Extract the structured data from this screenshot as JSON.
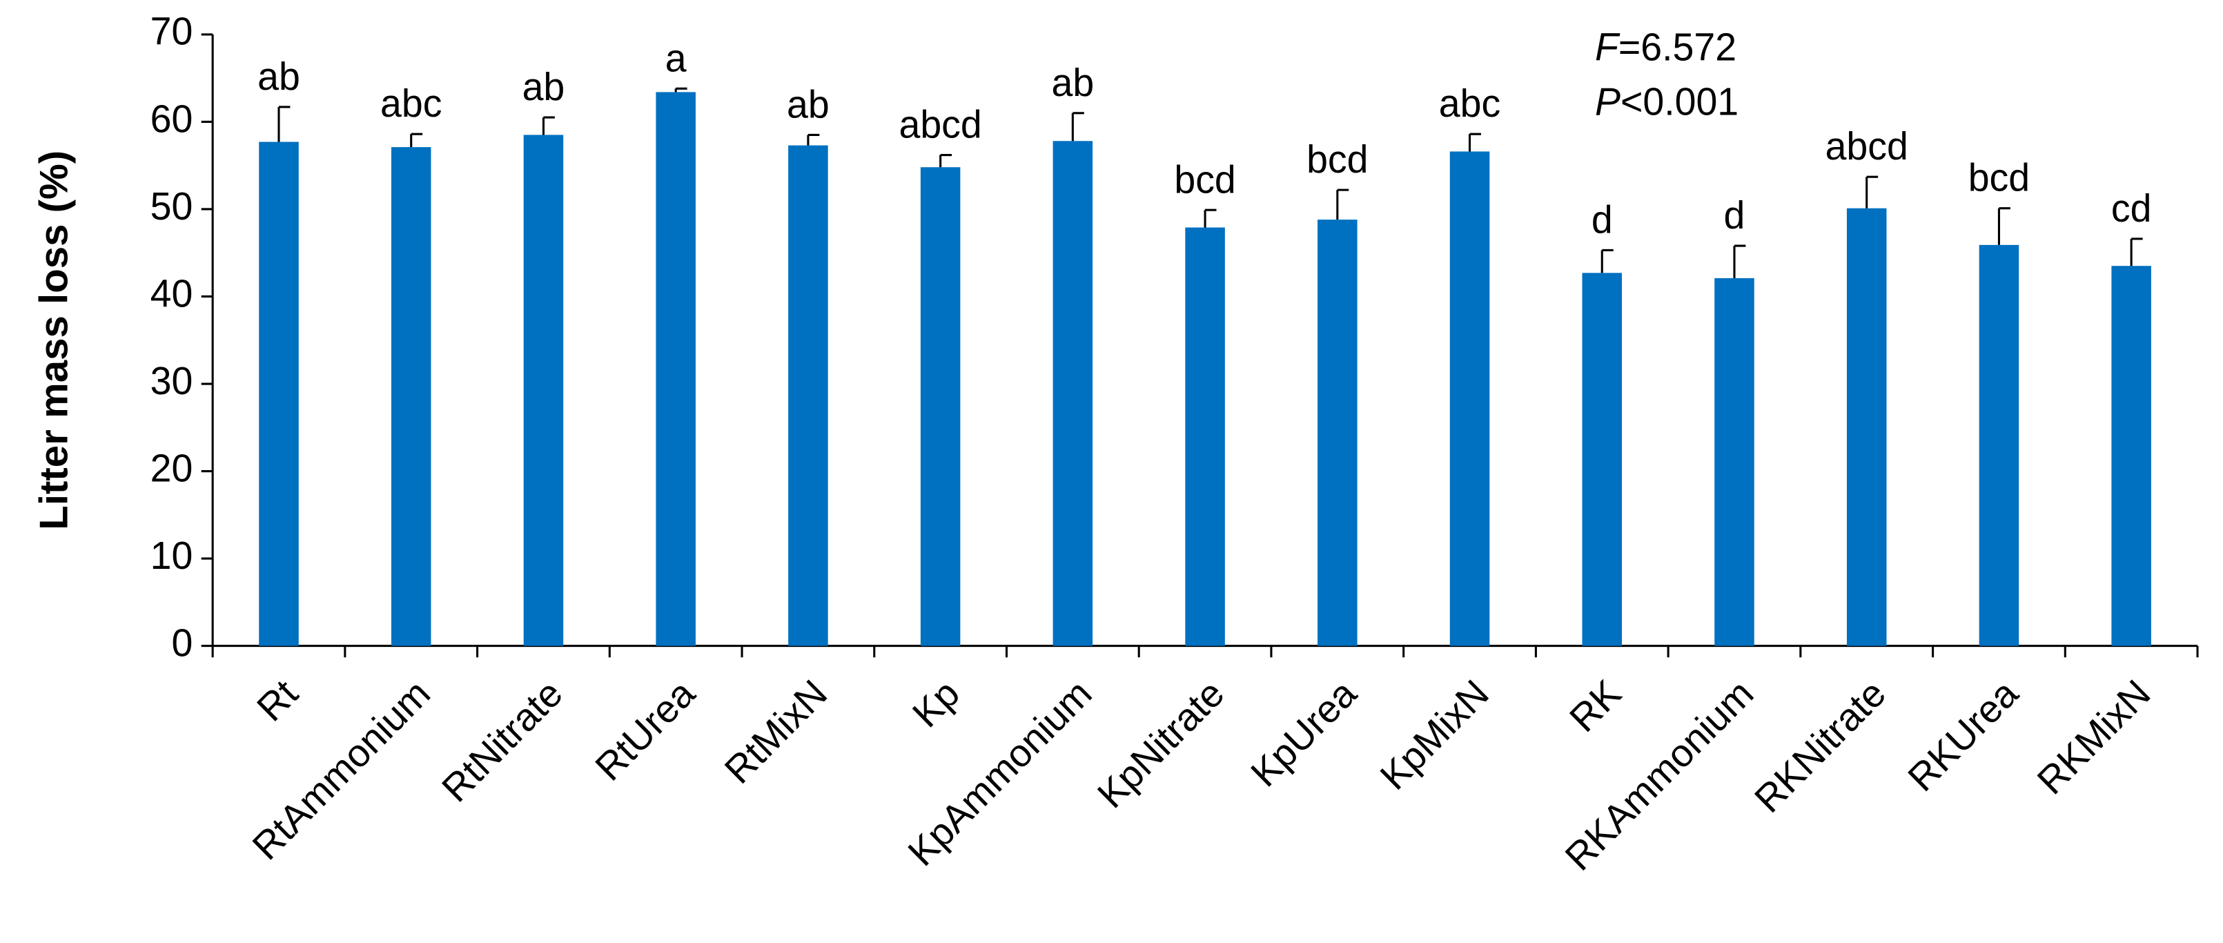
{
  "chart_data": {
    "type": "bar",
    "y_label": "Litter mass loss (%)",
    "categories": [
      "Rt",
      "RtAmmonium",
      "RtNitrate",
      "RtUrea",
      "RtMixN",
      "Kp",
      "KpAmmonium",
      "KpNitrate",
      "KpUrea",
      "KpMixN",
      "RK",
      "RKAmmonium",
      "RKNitrate",
      "RKUrea",
      "RKMixN"
    ],
    "values": [
      57.7,
      57.1,
      58.5,
      63.4,
      57.3,
      54.8,
      57.8,
      47.9,
      48.8,
      56.6,
      42.7,
      42.1,
      50.1,
      45.9,
      43.5
    ],
    "errors": [
      4.0,
      1.5,
      2.0,
      0.4,
      1.2,
      1.4,
      3.2,
      2.0,
      3.4,
      2.0,
      2.6,
      3.7,
      3.6,
      4.2,
      3.1
    ],
    "letters": [
      "ab",
      "abc",
      "ab",
      "a",
      "ab",
      "abcd",
      "ab",
      "bcd",
      "bcd",
      "abc",
      "d",
      "d",
      "abcd",
      "bcd",
      "cd"
    ],
    "color": "#0070c0",
    "ylim": [
      0,
      70
    ],
    "yticks": [
      0,
      10,
      20,
      30,
      40,
      50,
      60,
      70
    ],
    "stats": [
      {
        "symbol": "F",
        "text": "=6.572"
      },
      {
        "symbol": "P",
        "text": "<0.001"
      }
    ]
  }
}
